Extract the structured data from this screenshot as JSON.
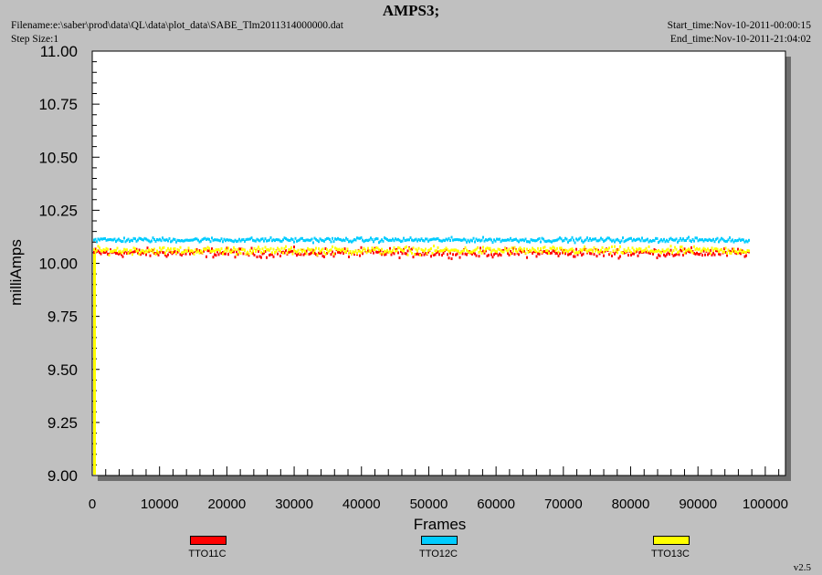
{
  "header": {
    "title": "AMPS3;",
    "filename": "Filename:e:\\saber\\prod\\data\\QL\\data\\plot_data\\SABE_Tlm2011314000000.dat",
    "step_size": "Step Size:1",
    "start_time": "Start_time:Nov-10-2011-00:00:15",
    "end_time": "End_time:Nov-10-2011-21:04:02"
  },
  "footer": {
    "version": "v2.5"
  },
  "colors": {
    "TTO11C": "#ff0000",
    "TTO12C": "#00ccff",
    "TTO13C": "#ffff00",
    "background": "#c0c0c0",
    "plot": "#ffffff"
  },
  "chart_data": {
    "type": "scatter",
    "title": "AMPS3;",
    "xlabel": "Frames",
    "ylabel": "milliAmps",
    "xlim": [
      0,
      103000
    ],
    "ylim": [
      9.0,
      11.0
    ],
    "x_ticks": [
      "0",
      "10000",
      "20000",
      "30000",
      "40000",
      "50000",
      "60000",
      "70000",
      "80000",
      "90000",
      "100000"
    ],
    "y_ticks": [
      "9.00",
      "9.25",
      "9.50",
      "9.75",
      "10.00",
      "10.25",
      "10.50",
      "10.75",
      "11.00"
    ],
    "x_range": [
      0,
      97500
    ],
    "legend_position": "bottom",
    "grid": false,
    "series": [
      {
        "name": "TTO11C",
        "color": "#ff0000",
        "level": 10.05,
        "spread": 0.03
      },
      {
        "name": "TTO12C",
        "color": "#00ccff",
        "level": 10.11,
        "spread": 0.015
      },
      {
        "name": "TTO13C",
        "color": "#ffff00",
        "level": 10.06,
        "spread": 0.025
      }
    ]
  }
}
